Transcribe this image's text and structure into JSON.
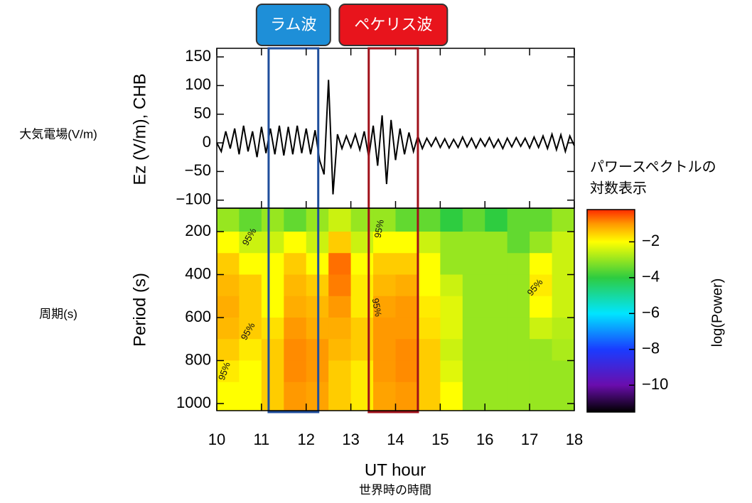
{
  "chart_data": [
    {
      "type": "line",
      "ylabel": "Ez (V/m), CHB",
      "side_label": "大気電場(V/m)",
      "xlim": [
        10,
        18
      ],
      "ylim": [
        -114,
        165
      ],
      "yticks": [
        {
          "value": -100,
          "label": "−100"
        },
        {
          "value": -50,
          "label": "−50"
        },
        0,
        50,
        100,
        150
      ],
      "color": "#000000",
      "x": [
        10.0,
        10.1,
        10.2,
        10.3,
        10.4,
        10.5,
        10.6,
        10.7,
        10.8,
        10.9,
        11.0,
        11.1,
        11.2,
        11.3,
        11.4,
        11.5,
        11.6,
        11.7,
        11.8,
        11.9,
        12.0,
        12.1,
        12.2,
        12.3,
        12.4,
        12.5,
        12.6,
        12.7,
        12.8,
        12.9,
        13.0,
        13.1,
        13.2,
        13.3,
        13.4,
        13.5,
        13.6,
        13.7,
        13.8,
        13.9,
        14.0,
        14.1,
        14.2,
        14.3,
        14.4,
        14.5,
        14.6,
        14.7,
        14.8,
        14.9,
        15.0,
        15.1,
        15.2,
        15.3,
        15.4,
        15.5,
        15.6,
        15.7,
        15.8,
        15.9,
        16.0,
        16.1,
        16.2,
        16.3,
        16.4,
        16.5,
        16.6,
        16.7,
        16.8,
        16.9,
        17.0,
        17.1,
        17.2,
        17.3,
        17.4,
        17.5,
        17.6,
        17.7,
        17.8,
        17.9,
        18.0
      ],
      "values": [
        0,
        -15,
        20,
        -10,
        25,
        -20,
        30,
        -15,
        20,
        -25,
        28,
        -18,
        25,
        -20,
        30,
        -22,
        28,
        -20,
        30,
        -18,
        25,
        -20,
        22,
        -30,
        -55,
        110,
        -90,
        15,
        -10,
        12,
        -8,
        15,
        -12,
        20,
        -25,
        30,
        -40,
        48,
        -72,
        40,
        -30,
        25,
        -20,
        18,
        -15,
        12,
        -10,
        8,
        -6,
        9,
        -8,
        7,
        -9,
        6,
        -8,
        10,
        -7,
        8,
        -9,
        7,
        -6,
        9,
        -8,
        6,
        -10,
        8,
        -7,
        9,
        -6,
        8,
        -9,
        10,
        -8,
        12,
        -10,
        15,
        -12,
        14,
        -15,
        12,
        -5
      ],
      "highlights": [
        {
          "label": "ラム波",
          "x": [
            11.16,
            12.27
          ],
          "color": "#1f4e9c",
          "fill": "#1e8fd8"
        },
        {
          "label": "ペケリス波",
          "x": [
            13.4,
            14.5
          ],
          "color": "#a0101a",
          "fill": "#e8141c"
        }
      ]
    },
    {
      "type": "heatmap",
      "ylabel": "Period (s)",
      "side_label": "周期(s)",
      "xlabel": "UT hour",
      "xlabel_sub": "世界時の時間",
      "xlim": [
        10,
        18
      ],
      "xticks": [
        10,
        11,
        12,
        13,
        14,
        15,
        16,
        17,
        18
      ],
      "ylim": [
        91,
        1033
      ],
      "yticks": [
        200,
        400,
        600,
        800,
        1000
      ],
      "x_bins": [
        10.0,
        10.5,
        11.0,
        11.5,
        12.0,
        12.5,
        13.0,
        13.5,
        14.0,
        14.5,
        15.0,
        15.5,
        16.0,
        16.5,
        17.0,
        17.5,
        18.0
      ],
      "period_bins": [
        91,
        200,
        300,
        400,
        500,
        600,
        700,
        800,
        900,
        1033
      ],
      "z": [
        [
          -3,
          -3.5,
          -3,
          -3.5,
          -3,
          -2.5,
          -3,
          -3,
          -3.5,
          -3.5,
          -4,
          -3.5,
          -4,
          -3.5,
          -3.5,
          -3
        ],
        [
          -2,
          -2.5,
          -2.5,
          -2,
          -2.5,
          -1.5,
          -2.5,
          -2,
          -2,
          -2.5,
          -3,
          -3,
          -3,
          -3.5,
          -3,
          -2.5
        ],
        [
          -1.5,
          -2,
          -2,
          -1.5,
          -2,
          -0.7,
          -2,
          -1.5,
          -1.5,
          -2,
          -3,
          -3,
          -3,
          -3,
          -2,
          -2.5
        ],
        [
          -1.3,
          -1.5,
          -2,
          -1.3,
          -1.5,
          -0.8,
          -1.8,
          -1.3,
          -1.2,
          -2,
          -2.5,
          -3,
          -3,
          -3,
          -1.8,
          -2.5
        ],
        [
          -1.2,
          -1.5,
          -2,
          -1.2,
          -1.3,
          -1,
          -1.8,
          -1.1,
          -1,
          -1.8,
          -2.3,
          -3,
          -3,
          -3,
          -2,
          -2.5
        ],
        [
          -1.3,
          -1.5,
          -1.7,
          -1,
          -1.2,
          -1.2,
          -1.5,
          -1,
          -1,
          -1.7,
          -2.3,
          -3,
          -3,
          -3,
          -2.5,
          -2.7
        ],
        [
          -1.5,
          -1.8,
          -1.5,
          -0.9,
          -1,
          -1.3,
          -1.5,
          -1,
          -0.9,
          -1.5,
          -2.5,
          -3,
          -3,
          -3,
          -3,
          -2.8
        ],
        [
          -1.8,
          -2,
          -1.5,
          -0.9,
          -1,
          -1.5,
          -1.8,
          -1,
          -0.9,
          -1.5,
          -2.3,
          -3,
          -3,
          -3,
          -3,
          -3
        ],
        [
          -2,
          -2,
          -1.5,
          -1,
          -1.1,
          -1.5,
          -1.8,
          -1.1,
          -1,
          -1.5,
          -2,
          -3,
          -3,
          -3,
          -3,
          -3
        ]
      ],
      "contour_labels": [
        "95%",
        "95%",
        "95%",
        "95%",
        "95%",
        "95%"
      ],
      "colorscale": [
        {
          "value": -11.5,
          "color": "#000000"
        },
        {
          "value": -10,
          "color": "#6a0dad"
        },
        {
          "value": -8,
          "color": "#1a3cff"
        },
        {
          "value": -6,
          "color": "#00e5ff"
        },
        {
          "value": -4,
          "color": "#2ecc40"
        },
        {
          "value": -2,
          "color": "#ffff00"
        },
        {
          "value": -1,
          "color": "#ff9900"
        },
        {
          "value": -0.2,
          "color": "#ff2a00"
        }
      ],
      "colorbar": {
        "label": "log(Power)",
        "title": [
          "パワースペクトルの",
          "対数表示"
        ],
        "lim": [
          -11.5,
          -0.2
        ],
        "ticks": [
          {
            "value": -2,
            "label": "−2"
          },
          {
            "value": -4,
            "label": "−4"
          },
          {
            "value": -6,
            "label": "−6"
          },
          {
            "value": -8,
            "label": "−8"
          },
          {
            "value": -10,
            "label": "−10"
          }
        ]
      }
    }
  ]
}
